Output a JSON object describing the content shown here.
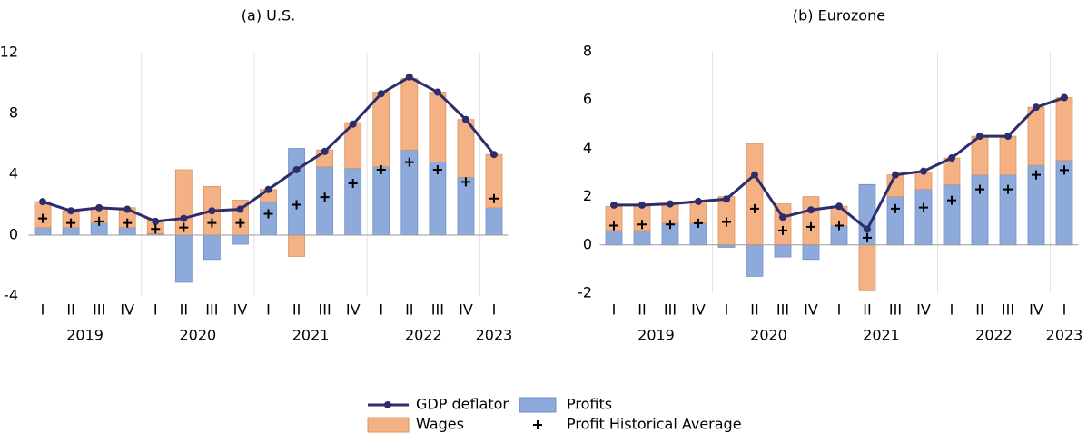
{
  "chart_data": [
    {
      "type": "stacked-bar-line",
      "title": "(a) U.S.",
      "categories": [
        "I",
        "II",
        "III",
        "IV",
        "I",
        "II",
        "III",
        "IV",
        "I",
        "II",
        "III",
        "IV",
        "I",
        "II",
        "III",
        "IV",
        "I"
      ],
      "years": [
        "2019",
        "2019",
        "2019",
        "2019",
        "2020",
        "2020",
        "2020",
        "2020",
        "2021",
        "2021",
        "2021",
        "2021",
        "2022",
        "2022",
        "2022",
        "2022",
        "2023"
      ],
      "ylim": [
        -4,
        12
      ],
      "yticks": [
        -4,
        0,
        4,
        8,
        12
      ],
      "series": [
        {
          "name": "Profits",
          "kind": "bar",
          "color": "#8eaadb",
          "values": [
            0.5,
            0.5,
            0.8,
            0.5,
            0.1,
            -3.1,
            -1.6,
            -0.6,
            2.2,
            5.7,
            4.5,
            4.4,
            4.5,
            5.6,
            4.8,
            3.8,
            1.8
          ]
        },
        {
          "name": "Wages",
          "kind": "bar",
          "color": "#f4b183",
          "values": [
            1.7,
            1.1,
            1.0,
            1.3,
            0.9,
            4.3,
            3.2,
            2.3,
            0.8,
            -1.4,
            1.1,
            3.0,
            4.9,
            4.7,
            4.6,
            3.8,
            3.5
          ]
        },
        {
          "name": "GDP deflator",
          "kind": "line",
          "color": "#2e2c6a",
          "values": [
            2.2,
            1.6,
            1.8,
            1.7,
            0.9,
            1.1,
            1.6,
            1.7,
            3.0,
            4.3,
            5.5,
            7.3,
            9.3,
            10.4,
            9.4,
            7.6,
            5.3
          ]
        },
        {
          "name": "Profit Historical Average",
          "kind": "plus",
          "color": "#000000",
          "values": [
            1.1,
            0.8,
            0.9,
            0.8,
            0.4,
            0.5,
            0.8,
            0.8,
            1.4,
            2.0,
            2.5,
            3.4,
            4.3,
            4.8,
            4.3,
            3.5,
            2.4
          ]
        }
      ]
    },
    {
      "type": "stacked-bar-line",
      "title": "(b) Eurozone",
      "categories": [
        "I",
        "II",
        "III",
        "IV",
        "I",
        "II",
        "III",
        "IV",
        "I",
        "II",
        "III",
        "IV",
        "I",
        "II",
        "III",
        "IV",
        "I"
      ],
      "years": [
        "2019",
        "2019",
        "2019",
        "2019",
        "2020",
        "2020",
        "2020",
        "2020",
        "2021",
        "2021",
        "2021",
        "2021",
        "2022",
        "2022",
        "2022",
        "2022",
        "2023"
      ],
      "ylim": [
        -2,
        8
      ],
      "yticks": [
        -2,
        0,
        2,
        4,
        6,
        8
      ],
      "series": [
        {
          "name": "Profits",
          "kind": "bar",
          "color": "#8eaadb",
          "values": [
            0.6,
            0.6,
            0.9,
            0.9,
            -0.1,
            -1.3,
            -0.5,
            -0.6,
            0.8,
            2.5,
            2.0,
            2.3,
            2.5,
            2.9,
            2.9,
            3.3,
            3.5
          ]
        },
        {
          "name": "Wages",
          "kind": "bar",
          "color": "#f4b183",
          "values": [
            1.0,
            1.0,
            0.8,
            0.9,
            2.0,
            4.2,
            1.7,
            2.0,
            0.8,
            -1.9,
            0.9,
            0.7,
            1.1,
            1.6,
            1.6,
            2.4,
            2.6
          ]
        },
        {
          "name": "GDP deflator",
          "kind": "line",
          "color": "#2e2c6a",
          "values": [
            1.65,
            1.65,
            1.7,
            1.8,
            1.9,
            2.9,
            1.15,
            1.45,
            1.6,
            0.65,
            2.9,
            3.05,
            3.6,
            4.5,
            4.5,
            5.7,
            6.1
          ]
        },
        {
          "name": "Profit Historical Average",
          "kind": "plus",
          "color": "#000000",
          "values": [
            0.8,
            0.85,
            0.85,
            0.9,
            0.95,
            1.5,
            0.6,
            0.75,
            0.8,
            0.3,
            1.5,
            1.55,
            1.85,
            2.3,
            2.3,
            2.9,
            3.1
          ]
        }
      ]
    }
  ]
}
